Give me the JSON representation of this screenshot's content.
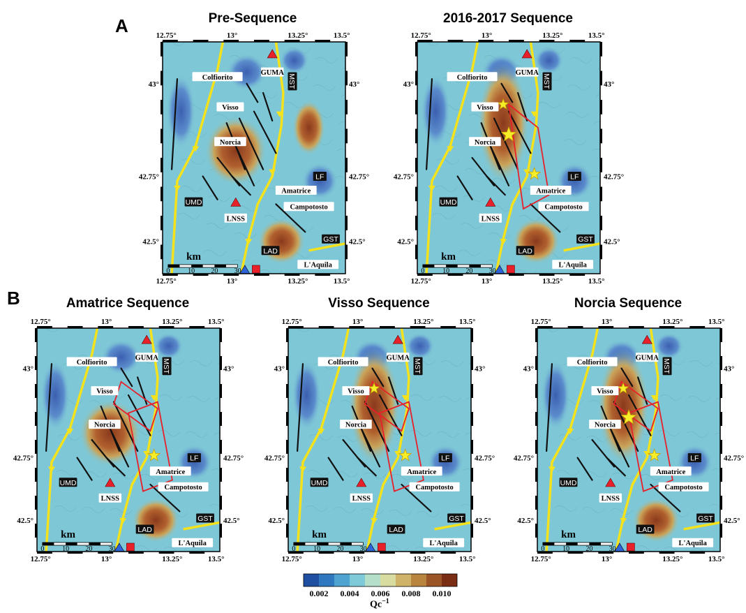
{
  "panels": {
    "a": "A",
    "b": "B"
  },
  "maps": [
    {
      "title": "Pre-Sequence",
      "variant": "pre",
      "hot_spots": [
        "norcia-central",
        "east-hill",
        "lad-south"
      ],
      "rectangles": 0,
      "stars": []
    },
    {
      "title": "2016-2017 Sequence",
      "variant": "full",
      "hot_spots": [
        "visso-norcia",
        "lad-south"
      ],
      "rectangles": 1,
      "stars": [
        "visso",
        "norcia",
        "amatrice"
      ]
    },
    {
      "title": "Amatrice Sequence",
      "variant": "amatrice",
      "hot_spots": [
        "norcia-central",
        "lad-south"
      ],
      "rectangles": 2,
      "stars": [
        "amatrice"
      ]
    },
    {
      "title": "Visso Sequence",
      "variant": "visso",
      "hot_spots": [
        "visso-norcia"
      ],
      "rectangles": 2,
      "stars": [
        "visso",
        "amatrice"
      ]
    },
    {
      "title": "Norcia Sequence",
      "variant": "norcia",
      "hot_spots": [
        "visso-norcia",
        "lad-south"
      ],
      "rectangles": 2,
      "stars": [
        "visso",
        "norcia",
        "amatrice"
      ]
    }
  ],
  "axes": {
    "lon_ticks": [
      "12.75°",
      "13°",
      "13.25°",
      "13.5°"
    ],
    "lat_ticks": [
      "43°",
      "42.75°",
      "42.5°"
    ]
  },
  "places": {
    "colfiorito": "Colfiorito",
    "visso": "Visso",
    "norcia": "Norcia",
    "amatrice": "Amatrice",
    "campotosto": "Campotosto",
    "laquila": "L'Aquila",
    "guma": "GUMA",
    "lnss": "LNSS",
    "mst": "MST",
    "lf": "LF",
    "umd": "UMD",
    "lad": "LAD",
    "gst": "GST"
  },
  "scale": {
    "unit": "km",
    "ticks": [
      "0",
      "10",
      "20",
      "30"
    ]
  },
  "colorbar": {
    "ticks": [
      "0.002",
      "0.004",
      "0.006",
      "0.008",
      "0.010"
    ],
    "label": "Qc",
    "label_sup": "−1",
    "colors": [
      "#1f4fa0",
      "#2f78c0",
      "#4fa3d0",
      "#7fcad8",
      "#b5dfc8",
      "#d9dca0",
      "#cfb368",
      "#b9853e",
      "#9a5426",
      "#7b2d14"
    ]
  }
}
